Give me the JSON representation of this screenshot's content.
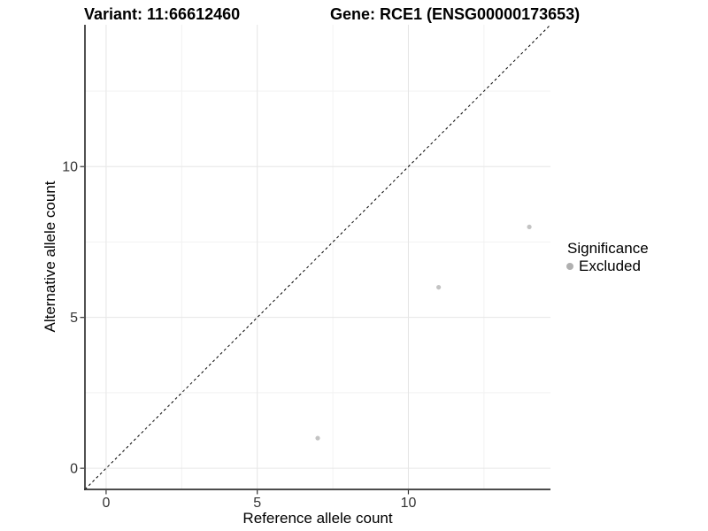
{
  "chart_data": {
    "type": "scatter",
    "title_variant": "Variant: 11:66612460",
    "title_gene": "Gene: RCE1 (ENSG00000173653)",
    "xlabel": "Reference allele count",
    "ylabel": "Alternative allele count",
    "x_ticks": [
      0,
      5,
      10
    ],
    "y_ticks": [
      0,
      5,
      10
    ],
    "x_minor_ticks": [
      2.5,
      7.5,
      12.5
    ],
    "y_minor_ticks": [
      2.5,
      7.5,
      12.5
    ],
    "xlim": [
      -0.7,
      14.7
    ],
    "ylim": [
      -0.7,
      14.7
    ],
    "grid": true,
    "identity_line": {
      "slope": 1,
      "intercept": 0,
      "style": "dashed",
      "color": "#000000"
    },
    "points": [
      {
        "x": 7,
        "y": 1,
        "significance": "Excluded"
      },
      {
        "x": 11,
        "y": 6,
        "significance": "Excluded"
      },
      {
        "x": 14,
        "y": 8,
        "significance": "Excluded"
      }
    ],
    "point_color": "#c3c3c3",
    "legend": {
      "position": "right",
      "title": "Significance",
      "items": [
        {
          "label": "Excluded",
          "color": "#b0b0b0"
        }
      ]
    },
    "colors": {
      "grid_major": "#e6e6e6",
      "grid_minor": "#f2f2f2",
      "axis_line": "#333333",
      "tick_label": "#333333"
    }
  }
}
